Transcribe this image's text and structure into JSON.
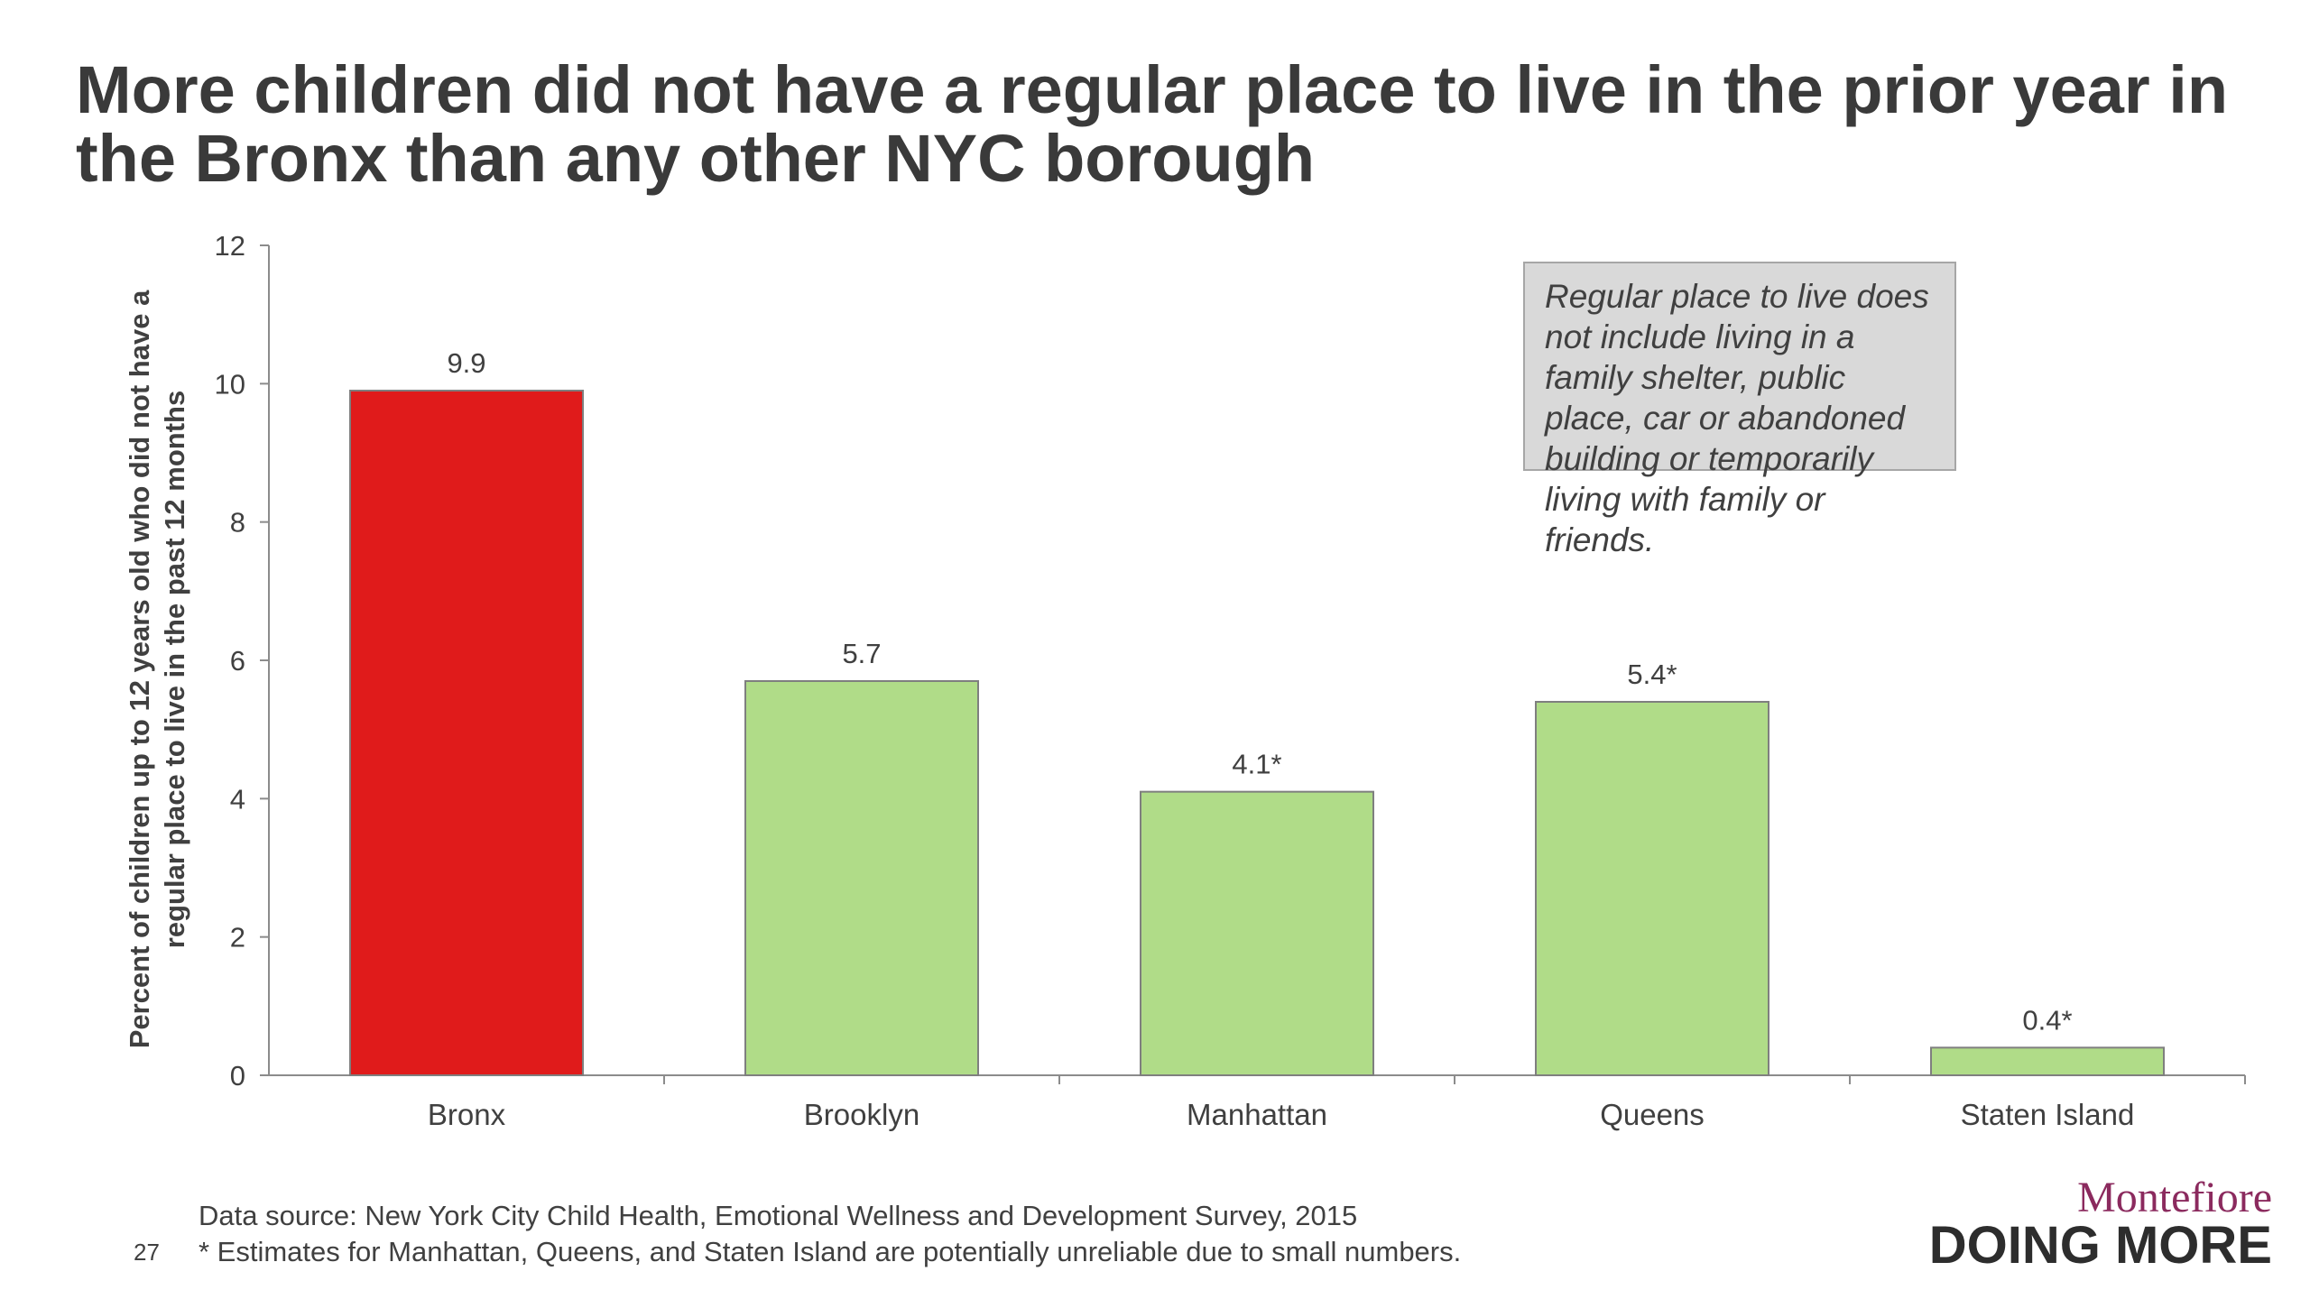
{
  "slide": {
    "title": "More children did not have a regular place to live in the prior year in the Bronx than any other NYC borough",
    "note": "Regular place to live does not include living in a family shelter, public place, car or abandoned building or temporarily living with family or friends.",
    "source": "Data source: New York City Child Health, Emotional Wellness and Development Survey, 2015",
    "footnote": "* Estimates for Manhattan, Queens, and Staten Island are potentially unreliable due to small numbers.",
    "page_number": "27",
    "logo_name": "Montefiore",
    "logo_tagline": "DOING MORE"
  },
  "chart_data": {
    "type": "bar",
    "title": "",
    "xlabel": "",
    "ylabel": "Percent of children up to 12 years old who did not have a regular place to live in the past 12 months",
    "ylim": [
      0,
      12
    ],
    "yticks": [
      0,
      2,
      4,
      6,
      8,
      10,
      12
    ],
    "categories": [
      "Bronx",
      "Brooklyn",
      "Manhattan",
      "Queens",
      "Staten Island"
    ],
    "values": [
      9.9,
      5.7,
      4.1,
      5.4,
      0.4
    ],
    "data_labels": [
      "9.9",
      "5.7",
      "4.1*",
      "5.4*",
      "0.4*"
    ],
    "colors": [
      "#e01b1b",
      "#b0dc88",
      "#b0dc88",
      "#b0dc88",
      "#b0dc88"
    ],
    "bar_border_color": "#7f7f7f",
    "axis_color": "#8c8c8c",
    "grid": false,
    "legend": "none"
  }
}
